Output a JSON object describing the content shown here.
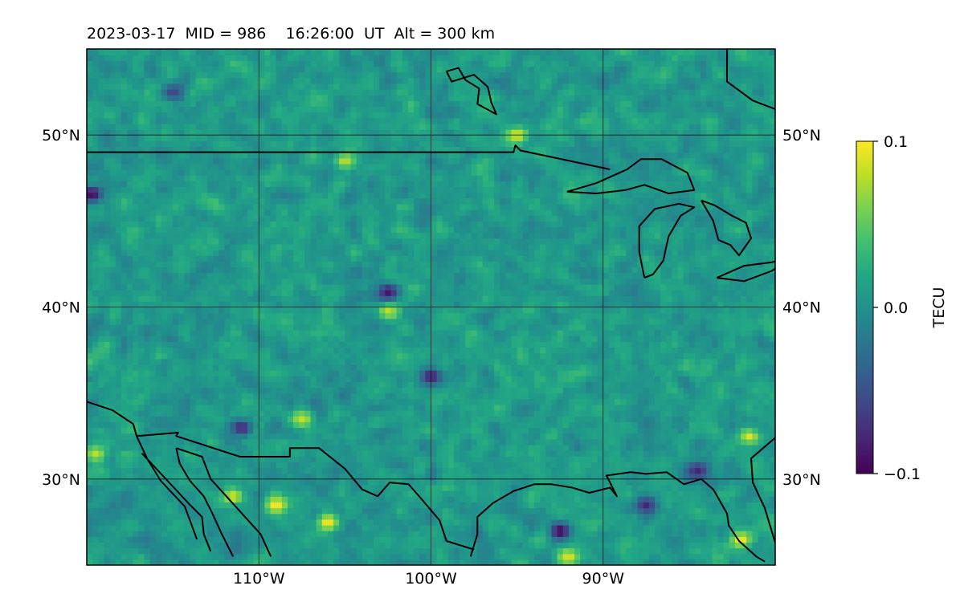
{
  "chart_data": {
    "type": "heatmap",
    "title": "2023-03-17  MID = 986    16:26:00  UT  Alt = 300 km",
    "projection": "map",
    "lon_range": [
      -120,
      -80
    ],
    "lat_range": [
      25,
      55
    ],
    "lon_ticks": [
      {
        "value": -110,
        "label": "110°W"
      },
      {
        "value": -100,
        "label": "100°W"
      },
      {
        "value": -90,
        "label": "90°W"
      }
    ],
    "lat_ticks": [
      {
        "value": 30,
        "label": "30°N"
      },
      {
        "value": 40,
        "label": "40°N"
      },
      {
        "value": 50,
        "label": "50°N"
      }
    ],
    "grid": true,
    "colormap": "viridis",
    "colorbar": {
      "label": "TECU",
      "range": [
        -0.1,
        0.1
      ],
      "ticks": [
        {
          "value": 0.1,
          "label": "0.1"
        },
        {
          "value": 0.0,
          "label": "0.0"
        },
        {
          "value": -0.1,
          "label": "−0.1"
        }
      ],
      "colors": [
        "#440154",
        "#482475",
        "#414487",
        "#355f8d",
        "#2a788e",
        "#21918c",
        "#22a884",
        "#44bf70",
        "#7ad151",
        "#bddf26",
        "#fde725"
      ]
    },
    "field_description": "gridded TEC perturbation, mostly near 0.0 with scattered high (yellow) and low (purple) cells",
    "hotspots": [
      {
        "lon": -109,
        "lat": 28.5,
        "value": 0.1
      },
      {
        "lon": -106,
        "lat": 27.5,
        "value": 0.1
      },
      {
        "lon": -111.5,
        "lat": 29,
        "value": 0.09
      },
      {
        "lon": -119.5,
        "lat": 31.5,
        "value": 0.08
      },
      {
        "lon": -82,
        "lat": 26.5,
        "value": 0.1
      },
      {
        "lon": -81.5,
        "lat": 32.5,
        "value": 0.09
      },
      {
        "lon": -95,
        "lat": 50,
        "value": 0.09
      },
      {
        "lon": -105,
        "lat": 48.5,
        "value": 0.08
      },
      {
        "lon": -102.5,
        "lat": 39.8,
        "value": 0.08
      },
      {
        "lon": -92,
        "lat": 25.5,
        "value": 0.09
      },
      {
        "lon": -107.5,
        "lat": 33.5,
        "value": 0.08
      }
    ],
    "coldspots": [
      {
        "lon": -92.5,
        "lat": 27,
        "value": -0.1
      },
      {
        "lon": -100,
        "lat": 36,
        "value": -0.09
      },
      {
        "lon": -102.5,
        "lat": 40.9,
        "value": -0.09
      },
      {
        "lon": -119.7,
        "lat": 46.6,
        "value": -0.1
      },
      {
        "lon": -111,
        "lat": 33,
        "value": -0.08
      },
      {
        "lon": -87.5,
        "lat": 28.5,
        "value": -0.08
      },
      {
        "lon": -115,
        "lat": 52.5,
        "value": -0.06
      },
      {
        "lon": -84.5,
        "lat": 30.5,
        "value": -0.08
      }
    ]
  }
}
